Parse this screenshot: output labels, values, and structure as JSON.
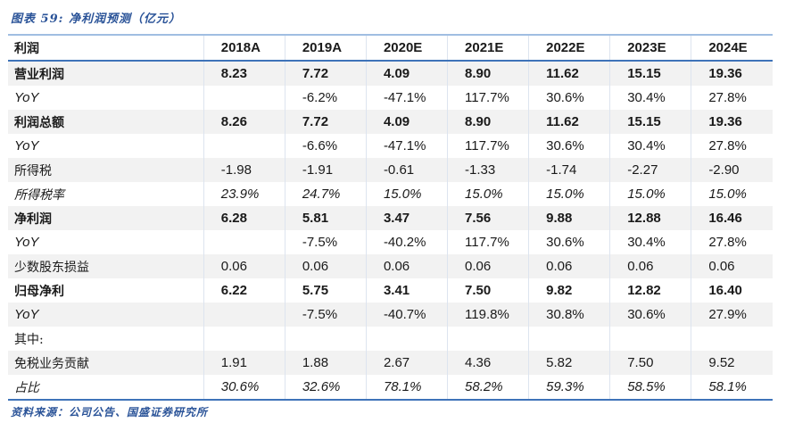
{
  "title": "图表 59:  净利润预测（亿元）",
  "source": "资料来源：公司公告、国盛证券研究所",
  "colors": {
    "accent": "#2a5398",
    "text": "#1a1a1a",
    "header_top_border": "#a0bee2",
    "blue_rule": "#3e73b9",
    "row_stripe": "#f2f2f2",
    "column_separator": "#dde4ef"
  },
  "chart_data": {
    "type": "table",
    "header_label": "利润",
    "columns": [
      "2018A",
      "2019A",
      "2020E",
      "2021E",
      "2022E",
      "2023E",
      "2024E"
    ],
    "rows": [
      {
        "label": "营业利润",
        "style": "bold",
        "values": [
          "8.23",
          "7.72",
          "4.09",
          "8.90",
          "11.62",
          "15.15",
          "19.36"
        ]
      },
      {
        "label": "YoY",
        "style": "yoy",
        "values": [
          "",
          "-6.2%",
          "-47.1%",
          "117.7%",
          "30.6%",
          "30.4%",
          "27.8%"
        ]
      },
      {
        "label": "利润总额",
        "style": "bold",
        "values": [
          "8.26",
          "7.72",
          "4.09",
          "8.90",
          "11.62",
          "15.15",
          "19.36"
        ]
      },
      {
        "label": "YoY",
        "style": "yoy",
        "values": [
          "",
          "-6.6%",
          "-47.1%",
          "117.7%",
          "30.6%",
          "30.4%",
          "27.8%"
        ]
      },
      {
        "label": "所得税",
        "style": "normal",
        "values": [
          "-1.98",
          "-1.91",
          "-0.61",
          "-1.33",
          "-1.74",
          "-2.27",
          "-2.90"
        ]
      },
      {
        "label": "所得税率",
        "style": "italic",
        "values": [
          "23.9%",
          "24.7%",
          "15.0%",
          "15.0%",
          "15.0%",
          "15.0%",
          "15.0%"
        ]
      },
      {
        "label": "净利润",
        "style": "bold",
        "values": [
          "6.28",
          "5.81",
          "3.47",
          "7.56",
          "9.88",
          "12.88",
          "16.46"
        ]
      },
      {
        "label": "YoY",
        "style": "yoy",
        "values": [
          "",
          "-7.5%",
          "-40.2%",
          "117.7%",
          "30.6%",
          "30.4%",
          "27.8%"
        ]
      },
      {
        "label": "少数股东损益",
        "style": "normal",
        "values": [
          "0.06",
          "0.06",
          "0.06",
          "0.06",
          "0.06",
          "0.06",
          "0.06"
        ]
      },
      {
        "label": "归母净利",
        "style": "bold",
        "values": [
          "6.22",
          "5.75",
          "3.41",
          "7.50",
          "9.82",
          "12.82",
          "16.40"
        ]
      },
      {
        "label": "YoY",
        "style": "yoy",
        "values": [
          "",
          "-7.5%",
          "-40.7%",
          "119.8%",
          "30.8%",
          "30.6%",
          "27.9%"
        ]
      },
      {
        "label": "其中:",
        "style": "normal",
        "values": [
          "",
          "",
          "",
          "",
          "",
          "",
          ""
        ]
      },
      {
        "label": "免税业务贡献",
        "style": "normal",
        "values": [
          "1.91",
          "1.88",
          "2.67",
          "4.36",
          "5.82",
          "7.50",
          "9.52"
        ]
      },
      {
        "label": "占比",
        "style": "italic",
        "values": [
          "30.6%",
          "32.6%",
          "78.1%",
          "58.2%",
          "59.3%",
          "58.5%",
          "58.1%"
        ]
      }
    ]
  }
}
